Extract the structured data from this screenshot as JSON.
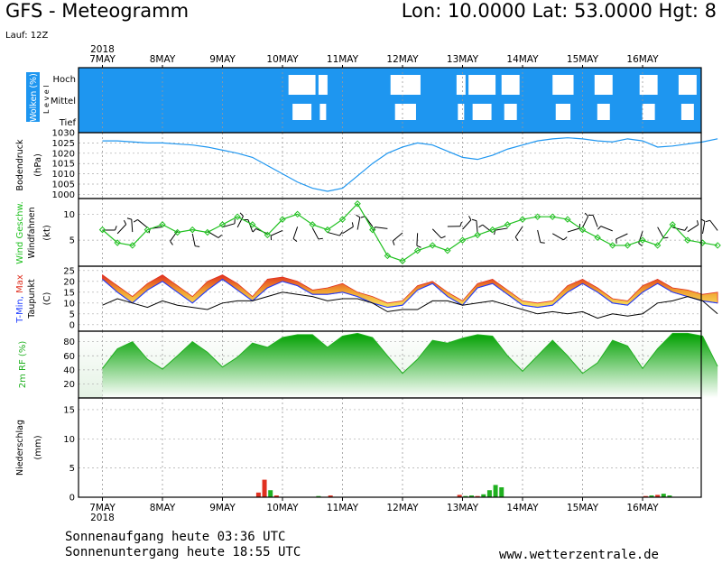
{
  "header": {
    "title": "GFS - Meteogramm",
    "coords": "Lon: 10.0000 Lat: 53.0000 Hgt: 8",
    "run": "Lauf: 12Z"
  },
  "footer": {
    "sunrise": "Sonnenaufgang heute 03:36 UTC",
    "sunset": "Sonnenuntergang heute 18:55 UTC",
    "url": "www.wetterzentrale.de"
  },
  "chart_data": {
    "type": "line",
    "x_axis": {
      "year": "2018",
      "categories": [
        "7MAY",
        "8MAY",
        "9MAY",
        "10MAY",
        "11MAY",
        "12MAY",
        "13MAY",
        "14MAY",
        "15MAY",
        "16MAY"
      ]
    },
    "panels": {
      "clouds": {
        "ylabel": "Wolken (%)",
        "level_label": "L e v e l",
        "levels": [
          "Hoch",
          "Mittel",
          "Tief"
        ],
        "colors": {
          "cloud": "#1e96f0",
          "clear": "#ffffff"
        },
        "clear_periods_days": [
          [
            3.1,
            3.55
          ],
          [
            3.6,
            3.75
          ],
          [
            4.8,
            5.3
          ],
          [
            5.9,
            6.05
          ],
          [
            6.1,
            6.55
          ],
          [
            6.65,
            6.95
          ],
          [
            7.5,
            7.85
          ],
          [
            8.2,
            8.5
          ],
          [
            8.95,
            9.25
          ],
          [
            9.6,
            9.9
          ]
        ]
      },
      "pressure": {
        "ylabel": "Bodendruck",
        "unit": "(hPa)",
        "yticks": [
          1000,
          1005,
          1010,
          1015,
          1020,
          1025,
          1030
        ],
        "ylim": [
          998,
          1030
        ],
        "color": "#1e96f0",
        "x": [
          0,
          0.25,
          0.5,
          0.75,
          1,
          1.25,
          1.5,
          1.75,
          2,
          2.25,
          2.5,
          2.75,
          3,
          3.25,
          3.5,
          3.75,
          4,
          4.25,
          4.5,
          4.75,
          5,
          5.25,
          5.5,
          5.75,
          6,
          6.25,
          6.5,
          6.75,
          7,
          7.25,
          7.5,
          7.75,
          8,
          8.25,
          8.5,
          8.75,
          9,
          9.25,
          9.5,
          9.75,
          10,
          10.25
        ],
        "values": [
          1026,
          1026,
          1025.5,
          1025,
          1025,
          1024.5,
          1024,
          1023,
          1021.5,
          1020,
          1018,
          1014,
          1010,
          1006,
          1003,
          1001.5,
          1003,
          1009,
          1015,
          1020,
          1023,
          1025,
          1024,
          1021,
          1018,
          1017,
          1019,
          1022,
          1024,
          1026,
          1027,
          1027.5,
          1027,
          1026,
          1025.5,
          1027,
          1026,
          1023,
          1023.5,
          1024.5,
          1025.5,
          1027
        ]
      },
      "wind": {
        "ylabel_wind": "Wind",
        "ylabel_speed": "Geschw.",
        "ylabel_barbs": "Windfahnen",
        "unit": "(kt)",
        "yticks": [
          5,
          10
        ],
        "ylim": [
          0,
          13
        ],
        "colors": {
          "speed": "#20c020",
          "barbs": "#000000"
        },
        "x": [
          0,
          0.25,
          0.5,
          0.75,
          1,
          1.25,
          1.5,
          1.75,
          2,
          2.25,
          2.5,
          2.75,
          3,
          3.25,
          3.5,
          3.75,
          4,
          4.25,
          4.5,
          4.75,
          5,
          5.25,
          5.5,
          5.75,
          6,
          6.25,
          6.5,
          6.75,
          7,
          7.25,
          7.5,
          7.75,
          8,
          8.25,
          8.5,
          8.75,
          9,
          9.25,
          9.5,
          9.75,
          10,
          10.25
        ],
        "values": [
          7,
          4.5,
          4,
          7,
          8,
          6.5,
          7,
          6.5,
          8,
          9.5,
          8,
          6,
          9,
          10,
          8,
          7,
          9,
          12,
          7,
          2,
          1,
          3,
          4,
          3,
          5,
          6,
          7,
          8,
          9,
          9.5,
          9.5,
          9,
          7,
          5.5,
          4,
          4,
          5,
          4,
          8,
          5,
          4.5,
          4
        ]
      },
      "temperature": {
        "ylabel_tmin": "T-Min,",
        "ylabel_tmax": "Max",
        "ylabel_dew": "Taupunkt",
        "unit": "(C)",
        "yticks": [
          0,
          5,
          10,
          15,
          20,
          25
        ],
        "ylim": [
          -3,
          27
        ],
        "colors": {
          "tmin_line": "#1e3cff",
          "dew_line": "#000000",
          "fill_low": "#e03020",
          "fill_mid": "#f0a030",
          "fill_high": "#f8e060",
          "fill_cool": "#80d040"
        },
        "x": [
          0,
          0.25,
          0.5,
          0.75,
          1,
          1.25,
          1.5,
          1.75,
          2,
          2.25,
          2.5,
          2.75,
          3,
          3.25,
          3.5,
          3.75,
          4,
          4.25,
          4.5,
          4.75,
          5,
          5.25,
          5.5,
          5.75,
          6,
          6.25,
          6.5,
          6.75,
          7,
          7.25,
          7.5,
          7.75,
          8,
          8.25,
          8.5,
          8.75,
          9,
          9.25,
          9.5,
          9.75,
          10,
          10.25
        ],
        "tmax": [
          23,
          18,
          13,
          19,
          23,
          18,
          13,
          20,
          23,
          19,
          13,
          21,
          22,
          20,
          16,
          17,
          19,
          15,
          13,
          10,
          11,
          18,
          20,
          15,
          11,
          19,
          21,
          16,
          11,
          10,
          11,
          18,
          21,
          17,
          12,
          11,
          18,
          21,
          17,
          16,
          14,
          15
        ],
        "tmin": [
          21,
          15,
          10,
          16,
          20,
          15,
          10,
          16,
          21,
          16,
          11,
          17,
          20,
          18,
          14,
          14,
          15,
          13,
          10,
          8,
          9,
          16,
          19,
          13,
          9,
          17,
          19,
          14,
          9,
          8,
          9,
          15,
          19,
          15,
          10,
          9,
          15,
          19,
          15,
          13,
          11,
          10
        ],
        "dew": [
          9,
          12,
          10,
          8,
          11,
          9,
          8,
          7,
          10,
          11,
          11,
          13,
          15,
          14,
          13,
          11,
          12,
          12,
          10,
          6,
          7,
          7,
          11,
          11,
          9,
          10,
          11,
          9,
          7,
          5,
          6,
          5,
          6,
          3,
          5,
          4,
          5,
          10,
          11,
          13,
          11,
          5
        ]
      },
      "humidity": {
        "ylabel": "2m RF (%)",
        "yticks": [
          20,
          40,
          60,
          80
        ],
        "ylim": [
          0,
          95
        ],
        "colors": {
          "line": "#20b020",
          "fill_top": "#00a000",
          "fill_bottom": "#ffffff"
        },
        "x": [
          0,
          0.25,
          0.5,
          0.75,
          1,
          1.25,
          1.5,
          1.75,
          2,
          2.25,
          2.5,
          2.75,
          3,
          3.25,
          3.5,
          3.75,
          4,
          4.25,
          4.5,
          4.75,
          5,
          5.25,
          5.5,
          5.75,
          6,
          6.25,
          6.5,
          6.75,
          7,
          7.25,
          7.5,
          7.75,
          8,
          8.25,
          8.5,
          8.75,
          9,
          9.25,
          9.5,
          9.75,
          10,
          10.25
        ],
        "values": [
          42,
          70,
          80,
          55,
          41,
          60,
          80,
          65,
          44,
          58,
          78,
          72,
          86,
          90,
          90,
          72,
          88,
          92,
          86,
          60,
          35,
          55,
          82,
          78,
          85,
          90,
          88,
          60,
          38,
          60,
          82,
          60,
          35,
          50,
          82,
          74,
          42,
          70,
          92,
          92,
          88,
          45
        ]
      },
      "precipitation": {
        "ylabel": "Niederschlag",
        "unit": "(mm)",
        "yticks": [
          0,
          5,
          10,
          15
        ],
        "ylim": [
          0,
          17
        ],
        "colors": {
          "rain": "#e03020",
          "convective": "#20b020"
        },
        "bars": [
          {
            "day": 2.6,
            "value": 0.8,
            "kind": "rain"
          },
          {
            "day": 2.7,
            "value": 3.0,
            "kind": "rain"
          },
          {
            "day": 2.8,
            "value": 1.2,
            "kind": "convective"
          },
          {
            "day": 2.9,
            "value": 0.3,
            "kind": "rain"
          },
          {
            "day": 3.6,
            "value": 0.2,
            "kind": "convective"
          },
          {
            "day": 3.8,
            "value": 0.3,
            "kind": "rain"
          },
          {
            "day": 5.95,
            "value": 0.4,
            "kind": "rain"
          },
          {
            "day": 6.05,
            "value": 0.2,
            "kind": "convective"
          },
          {
            "day": 6.15,
            "value": 0.3,
            "kind": "convective"
          },
          {
            "day": 6.25,
            "value": 0.2,
            "kind": "rain"
          },
          {
            "day": 6.35,
            "value": 0.5,
            "kind": "convective"
          },
          {
            "day": 6.45,
            "value": 1.2,
            "kind": "convective"
          },
          {
            "day": 6.55,
            "value": 2.1,
            "kind": "convective"
          },
          {
            "day": 6.65,
            "value": 1.7,
            "kind": "convective"
          },
          {
            "day": 9.05,
            "value": 0.2,
            "kind": "rain"
          },
          {
            "day": 9.15,
            "value": 0.3,
            "kind": "convective"
          },
          {
            "day": 9.25,
            "value": 0.4,
            "kind": "rain"
          },
          {
            "day": 9.35,
            "value": 0.6,
            "kind": "convective"
          },
          {
            "day": 9.45,
            "value": 0.3,
            "kind": "convective"
          }
        ]
      }
    }
  }
}
